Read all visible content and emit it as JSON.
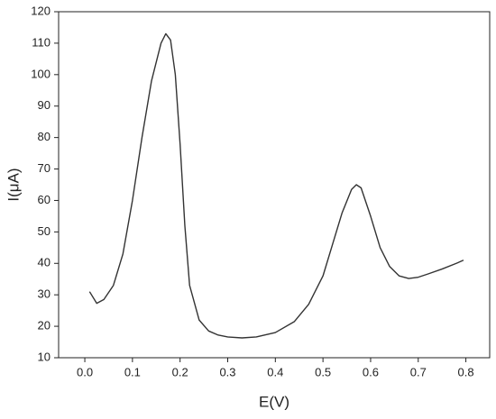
{
  "chart_data": {
    "type": "line",
    "xlabel": "E(V)",
    "ylabel": "I(μA)",
    "x": [
      0.01,
      0.025,
      0.04,
      0.06,
      0.08,
      0.1,
      0.12,
      0.14,
      0.16,
      0.17,
      0.18,
      0.19,
      0.2,
      0.21,
      0.22,
      0.24,
      0.26,
      0.28,
      0.3,
      0.33,
      0.36,
      0.4,
      0.44,
      0.47,
      0.5,
      0.52,
      0.54,
      0.56,
      0.57,
      0.58,
      0.6,
      0.62,
      0.64,
      0.66,
      0.68,
      0.7,
      0.72,
      0.75,
      0.78,
      0.795
    ],
    "series": [
      {
        "color": "#333333",
        "values": [
          31,
          27.3,
          28.5,
          33,
          43,
          60,
          80,
          98,
          110,
          113,
          111,
          100,
          78,
          52,
          33,
          22,
          18.5,
          17.2,
          16.6,
          16.3,
          16.6,
          18,
          21.5,
          27,
          36,
          46,
          56,
          63.5,
          65,
          64,
          55,
          45,
          39,
          36,
          35.2,
          35.6,
          36.6,
          38.2,
          40,
          41
        ]
      }
    ],
    "xlim": [
      -0.055,
      0.85
    ],
    "xticks": [
      {
        "value": 0,
        "label": "0.0"
      },
      0.1,
      0.2,
      0.3,
      0.4,
      0.5,
      0.6,
      0.7,
      0.8
    ],
    "ylim": [
      10,
      120
    ],
    "yticks": [
      10,
      20,
      30,
      40,
      50,
      60,
      70,
      80,
      90,
      100,
      110,
      120
    ]
  }
}
